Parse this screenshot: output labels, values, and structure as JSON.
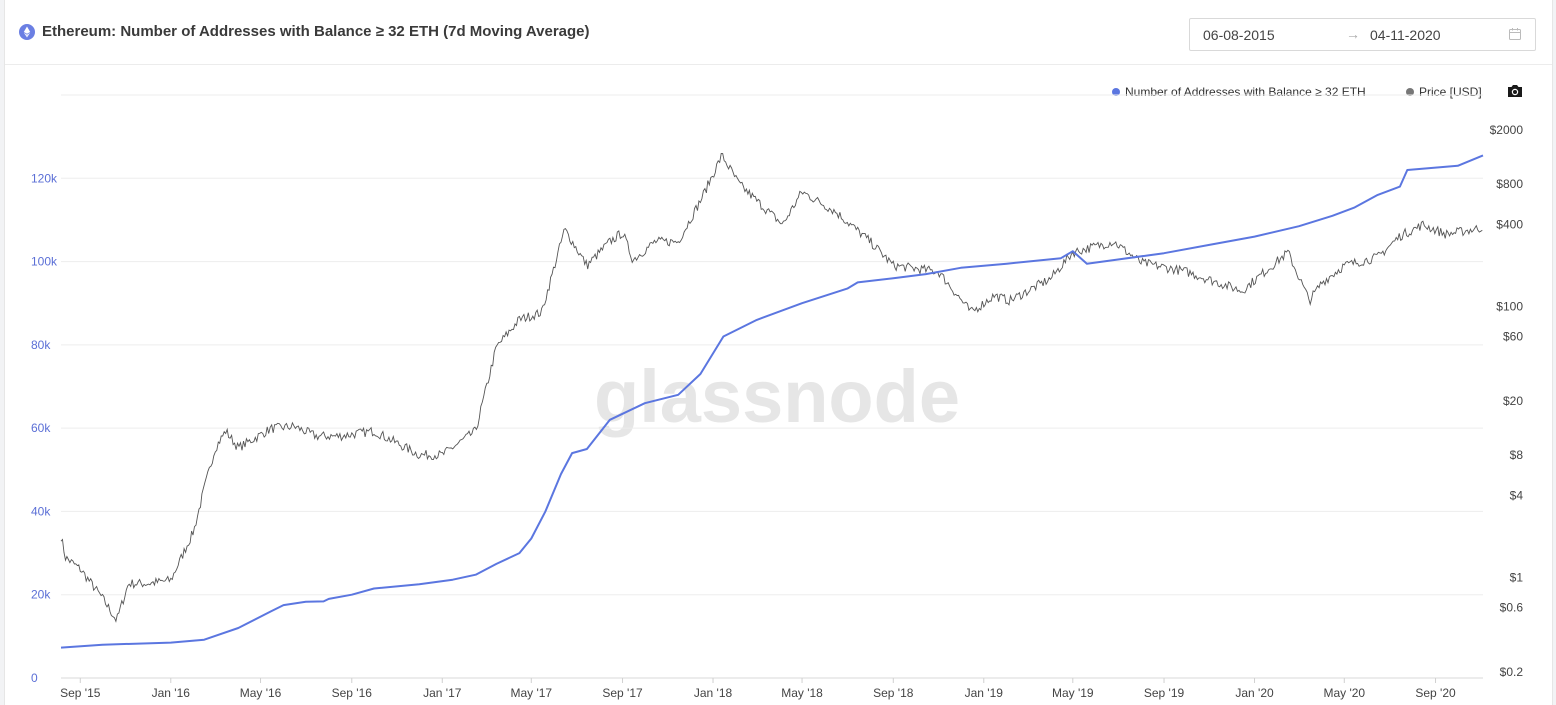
{
  "header": {
    "title": "Ethereum: Number of Addresses with Balance ≥ 32 ETH (7d Moving Average)",
    "date_start": "06-08-2015",
    "date_end": "04-11-2020",
    "date_arrow": "→"
  },
  "colors": {
    "addresses": "#5b76e0",
    "price": "#555555",
    "accent": "#6b7fe3"
  },
  "icons": [
    "ethereum-icon",
    "calendar-icon",
    "camera-icon"
  ],
  "watermark": "glassnode",
  "chart_data": {
    "type": "line",
    "title": "Ethereum: Number of Addresses with Balance ≥ 32 ETH (7d Moving Average)",
    "xlim": [
      "2015-08-06",
      "2020-11-04"
    ],
    "x_ticks": [
      "Sep '15",
      "Jan '16",
      "May '16",
      "Sep '16",
      "Jan '17",
      "May '17",
      "Sep '17",
      "Jan '18",
      "May '18",
      "Sep '18",
      "Jan '19",
      "May '19",
      "Sep '19",
      "Jan '20",
      "May '20",
      "Sep '20"
    ],
    "y_left": {
      "ticks": [
        0,
        20000,
        40000,
        60000,
        80000,
        100000,
        120000
      ],
      "tick_labels": [
        "0",
        "20k",
        "40k",
        "60k",
        "80k",
        "100k",
        "120k"
      ],
      "ylim": [
        0,
        140000
      ]
    },
    "y_right": {
      "scale": "log",
      "ticks": [
        0.2,
        0.6,
        1,
        4,
        8,
        20,
        60,
        100,
        400,
        800,
        2000
      ],
      "tick_labels": [
        "$0.2",
        "$0.6",
        "$1",
        "$4",
        "$8",
        "$20",
        "$60",
        "$100",
        "$400",
        "$800",
        "$2000"
      ]
    },
    "grid": true,
    "legend": "top-right",
    "series": [
      {
        "name": "Number of Addresses with Balance ≥ 32 ETH",
        "axis": "left",
        "x": [
          "2015-08-06",
          "2015-10-01",
          "2016-01-01",
          "2016-02-15",
          "2016-04-01",
          "2016-05-15",
          "2016-06-01",
          "2016-07-01",
          "2016-07-25",
          "2016-08-01",
          "2016-09-01",
          "2016-10-01",
          "2016-12-01",
          "2017-01-15",
          "2017-02-15",
          "2017-03-15",
          "2017-04-15",
          "2017-05-01",
          "2017-05-20",
          "2017-06-10",
          "2017-06-25",
          "2017-07-15",
          "2017-08-15",
          "2017-10-01",
          "2017-11-15",
          "2017-12-15",
          "2018-01-15",
          "2018-03-01",
          "2018-05-01",
          "2018-07-01",
          "2018-07-15",
          "2018-09-01",
          "2018-10-15",
          "2018-12-01",
          "2019-02-01",
          "2019-04-15",
          "2019-05-01",
          "2019-05-20",
          "2019-07-01",
          "2019-09-01",
          "2019-11-01",
          "2020-01-01",
          "2020-03-01",
          "2020-04-15",
          "2020-05-15",
          "2020-06-15",
          "2020-07-15",
          "2020-07-25",
          "2020-10-01",
          "2020-11-04"
        ],
        "values": [
          7300,
          8000,
          8500,
          9200,
          12000,
          16000,
          17500,
          18300,
          18400,
          19000,
          20000,
          21500,
          22500,
          23600,
          24800,
          27400,
          30000,
          33500,
          40000,
          49000,
          54000,
          55000,
          62000,
          66000,
          68000,
          73000,
          82000,
          86000,
          90000,
          93500,
          95000,
          96000,
          97000,
          98500,
          99500,
          100800,
          102500,
          99500,
          100500,
          102000,
          104000,
          106000,
          108500,
          111000,
          113000,
          116000,
          118000,
          122000,
          123000,
          125500
        ]
      },
      {
        "name": "Price [USD]",
        "axis": "right",
        "x": [
          "2015-08-06",
          "2015-08-12",
          "2015-09-01",
          "2015-10-01",
          "2015-10-20",
          "2015-11-05",
          "2015-12-01",
          "2016-01-01",
          "2016-02-01",
          "2016-02-15",
          "2016-03-01",
          "2016-03-15",
          "2016-04-01",
          "2016-05-15",
          "2016-06-15",
          "2016-07-15",
          "2016-08-15",
          "2016-10-01",
          "2016-12-01",
          "2017-01-01",
          "2017-02-15",
          "2017-03-15",
          "2017-04-15",
          "2017-05-15",
          "2017-06-15",
          "2017-07-15",
          "2017-08-15",
          "2017-09-01",
          "2017-09-15",
          "2017-10-15",
          "2017-11-15",
          "2017-12-15",
          "2018-01-13",
          "2018-02-05",
          "2018-03-01",
          "2018-04-05",
          "2018-05-01",
          "2018-06-15",
          "2018-08-01",
          "2018-09-01",
          "2018-11-01",
          "2018-12-15",
          "2019-01-15",
          "2019-02-05",
          "2019-04-01",
          "2019-05-01",
          "2019-06-25",
          "2019-08-01",
          "2019-10-01",
          "2019-12-15",
          "2020-02-15",
          "2020-03-15",
          "2020-04-01",
          "2020-05-01",
          "2020-06-15",
          "2020-07-15",
          "2020-08-15",
          "2020-09-15",
          "2020-11-04"
        ],
        "values": [
          2.0,
          1.4,
          1.15,
          0.7,
          0.48,
          0.9,
          0.9,
          0.95,
          2.2,
          4.5,
          9,
          12,
          9,
          12.5,
          13,
          11,
          11,
          12,
          8,
          8,
          12,
          50,
          80,
          90,
          370,
          200,
          300,
          350,
          220,
          300,
          300,
          600,
          1300,
          800,
          600,
          400,
          700,
          500,
          300,
          200,
          180,
          90,
          120,
          110,
          160,
          250,
          300,
          210,
          180,
          130,
          250,
          110,
          150,
          200,
          230,
          330,
          400,
          340,
          380
        ]
      }
    ]
  }
}
